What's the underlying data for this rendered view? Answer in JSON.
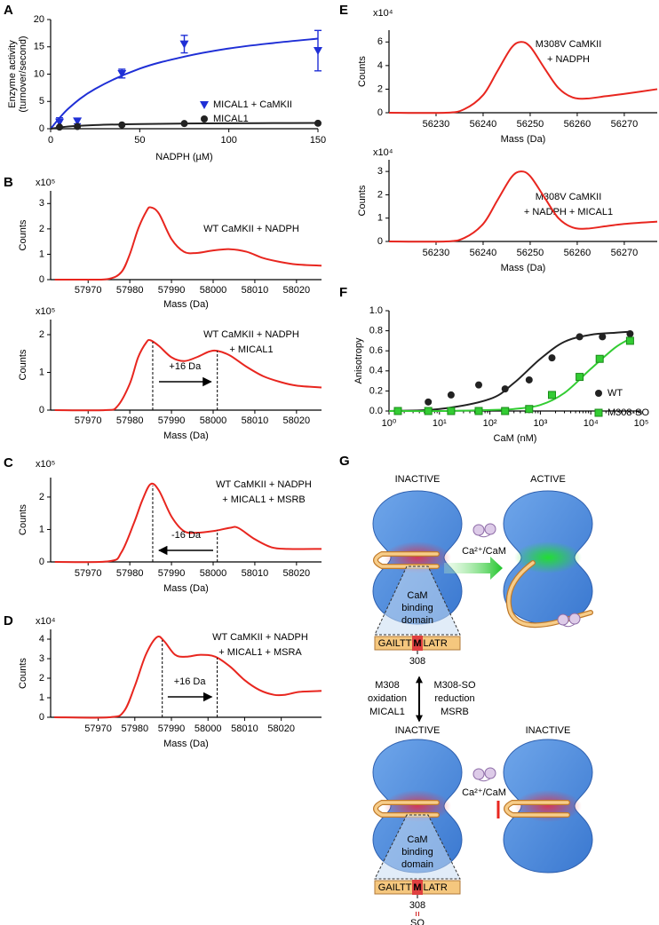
{
  "chart_data": [
    {
      "type": "scatter",
      "panel": "A",
      "x_label": "NADPH (µM)",
      "y_label": [
        "Enzyme activity",
        "(turnover/second)"
      ],
      "xlim": [
        0,
        150
      ],
      "xticks": [
        0,
        50,
        100,
        150
      ],
      "ylim": [
        0,
        20
      ],
      "yticks": [
        0,
        5,
        10,
        15,
        20
      ],
      "legend": "lower right",
      "series": [
        {
          "name": "MICAL1 + CaMKII",
          "color": "#1f2fd6",
          "marker": "triangle-down",
          "x": [
            5,
            15,
            40,
            75,
            150
          ],
          "values": [
            1.2,
            1.4,
            10.1,
            15.5,
            14.3
          ],
          "errors": [
            0.8,
            0.5,
            0.8,
            1.6,
            3.7
          ],
          "fit": {
            "x": [
              0,
              10,
              25,
              50,
              75,
              100,
              125,
              150
            ],
            "values": [
              0,
              3.7,
              7.3,
              11,
              13.2,
              14.7,
              15.7,
              16.5
            ]
          }
        },
        {
          "name": "MICAL1",
          "color": "#222222",
          "marker": "circle",
          "x": [
            5,
            15,
            40,
            75,
            150
          ],
          "values": [
            0.3,
            0.4,
            0.7,
            0.95,
            1.0
          ],
          "fit": {
            "x": [
              0,
              10,
              25,
              50,
              75,
              100,
              125,
              150
            ],
            "values": [
              0,
              0.4,
              0.67,
              0.86,
              0.95,
              1.0,
              1.03,
              1.06
            ]
          }
        }
      ]
    },
    {
      "type": "line",
      "panel": "B",
      "x_label": "Mass (Da)",
      "y_label": "Counts",
      "y_multiplier": "x10⁵",
      "annotation": [
        "WT CaMKII + NADPH"
      ],
      "xlim": [
        57961,
        58026
      ],
      "xticks": [
        57970,
        57980,
        57990,
        58000,
        58010,
        58020
      ],
      "ylim": [
        0,
        3.5
      ],
      "yticks": [
        0,
        1,
        2,
        3
      ],
      "series": [
        {
          "color": "#e8261f",
          "x": [
            57962,
            57970,
            57975,
            57978,
            57980,
            57982,
            57984,
            57985,
            57987,
            57990,
            57993,
            57996,
            58000,
            58004,
            58008,
            58012,
            58016,
            58020,
            58026
          ],
          "values": [
            0,
            0,
            0.03,
            0.3,
            1.0,
            2.0,
            2.7,
            2.85,
            2.6,
            1.6,
            1.1,
            1.05,
            1.15,
            1.2,
            1.1,
            0.85,
            0.7,
            0.6,
            0.55
          ]
        }
      ]
    },
    {
      "type": "line",
      "x_label": "Mass (Da)",
      "y_label": "Counts",
      "y_multiplier": "x10⁵",
      "annotation": [
        "WT CaMKII + NADPH",
        "+ MICAL1"
      ],
      "xlim": [
        57961,
        58026
      ],
      "xticks": [
        57970,
        57980,
        57990,
        58000,
        58010,
        58020
      ],
      "ylim": [
        0,
        2.4
      ],
      "yticks": [
        0,
        1,
        2
      ],
      "markers": [
        57985.5,
        58001
      ],
      "arrow": [
        57987,
        57999.5
      ],
      "shift_label": "+16 Da",
      "series": [
        {
          "color": "#e8261f",
          "x": [
            57962,
            57974,
            57977,
            57980,
            57982,
            57984,
            57985,
            57987,
            57990,
            57993,
            57996,
            57999,
            58001,
            58004,
            58008,
            58012,
            58016,
            58020,
            58026
          ],
          "values": [
            0,
            0,
            0.1,
            0.7,
            1.4,
            1.8,
            1.85,
            1.7,
            1.4,
            1.3,
            1.4,
            1.55,
            1.57,
            1.45,
            1.15,
            0.9,
            0.75,
            0.65,
            0.6
          ]
        }
      ]
    },
    {
      "type": "line",
      "panel": "C",
      "x_label": "Mass (Da)",
      "y_label": "Counts",
      "y_multiplier": "x10⁵",
      "annotation": [
        "WT CaMKII + NADPH",
        "+ MICAL1 + MSRB"
      ],
      "xlim": [
        57961,
        58026
      ],
      "xticks": [
        57970,
        57980,
        57990,
        58000,
        58010,
        58020
      ],
      "ylim": [
        0,
        2.6
      ],
      "yticks": [
        0,
        1,
        2
      ],
      "markers": [
        57985.5,
        58001
      ],
      "arrow": [
        58000,
        57987
      ],
      "shift_label": "-16 Da",
      "series": [
        {
          "color": "#e8261f",
          "x": [
            57962,
            57975,
            57978,
            57981,
            57983,
            57985,
            57987,
            57990,
            57993,
            57996,
            58000,
            58004,
            58006,
            58010,
            58014,
            58018,
            58026
          ],
          "values": [
            0,
            0.02,
            0.3,
            1.2,
            1.9,
            2.4,
            2.2,
            1.4,
            0.95,
            0.9,
            0.95,
            1.05,
            1.05,
            0.7,
            0.45,
            0.4,
            0.4
          ]
        }
      ]
    },
    {
      "type": "line",
      "panel": "D",
      "x_label": "Mass (Da)",
      "y_label": "Counts",
      "y_multiplier": "x10⁴",
      "annotation": [
        "WT CaMKII + NADPH",
        "+ MICAL1 + MSRA"
      ],
      "xlim": [
        57957,
        58031
      ],
      "xticks": [
        57970,
        57980,
        57990,
        58000,
        58010,
        58020
      ],
      "ylim": [
        0,
        4.5
      ],
      "yticks": [
        0,
        1,
        2,
        3,
        4
      ],
      "markers": [
        57987.5,
        58002.5
      ],
      "arrow": [
        57989,
        58001
      ],
      "shift_label": "+16 Da",
      "series": [
        {
          "color": "#e8261f",
          "x": [
            57958,
            57973,
            57977,
            57980,
            57983,
            57986,
            57988,
            57991,
            57994,
            57998,
            58002,
            58006,
            58010,
            58014,
            58018,
            58021,
            58025,
            58031
          ],
          "values": [
            0,
            0,
            0.3,
            1.6,
            3.2,
            4.1,
            3.9,
            3.2,
            3.1,
            3.2,
            3.1,
            2.6,
            1.9,
            1.4,
            1.15,
            1.15,
            1.3,
            1.35
          ]
        }
      ]
    },
    {
      "type": "line",
      "panel": "E",
      "x_label": "Mass (Da)",
      "y_label": "Counts",
      "y_multiplier": "x10⁴",
      "annotation": [
        "M308V CaMKII",
        "+ NADPH"
      ],
      "xlim": [
        56220,
        56277
      ],
      "xticks": [
        56230,
        56240,
        56250,
        56260,
        56270
      ],
      "ylim": [
        0,
        7
      ],
      "yticks": [
        0,
        2,
        4,
        6
      ],
      "series": [
        {
          "color": "#e8261f",
          "x": [
            56220,
            56232,
            56236,
            56240,
            56243,
            56246,
            56248,
            56250,
            56253,
            56256,
            56259,
            56262,
            56266,
            56270,
            56277
          ],
          "values": [
            0,
            0,
            0.3,
            1.5,
            3.5,
            5.5,
            6.0,
            5.6,
            3.8,
            2.1,
            1.3,
            1.2,
            1.4,
            1.6,
            2.0
          ]
        }
      ]
    },
    {
      "type": "line",
      "x_label": "Mass (Da)",
      "y_label": "Counts",
      "y_multiplier": "x10⁴",
      "annotation": [
        "M308V CaMKII",
        "+ NADPH + MICAL1"
      ],
      "xlim": [
        56220,
        56277
      ],
      "xticks": [
        56230,
        56240,
        56250,
        56260,
        56270
      ],
      "ylim": [
        0,
        3.5
      ],
      "yticks": [
        0,
        1,
        2,
        3
      ],
      "series": [
        {
          "color": "#e8261f",
          "x": [
            56220,
            56232,
            56236,
            56240,
            56243,
            56246,
            56248,
            56250,
            56253,
            56256,
            56259,
            56262,
            56266,
            56270,
            56277
          ],
          "values": [
            0,
            0,
            0.15,
            0.75,
            1.75,
            2.75,
            3.0,
            2.8,
            1.9,
            1.0,
            0.6,
            0.55,
            0.65,
            0.75,
            0.85
          ]
        }
      ]
    },
    {
      "type": "scatter",
      "panel": "F",
      "x_label": "CaM (nM)",
      "y_label": [
        "Anisotropy"
      ],
      "xlog": true,
      "legend": "lower right",
      "xlim": [
        1,
        100000
      ],
      "xticks": [
        {
          "value": 1,
          "label": "10⁰"
        },
        {
          "value": 10,
          "label": "10¹"
        },
        {
          "value": 100,
          "label": "10²"
        },
        {
          "value": 1000,
          "label": "10³"
        },
        {
          "value": 10000,
          "label": "10⁴"
        },
        {
          "value": 100000,
          "label": "10⁵"
        }
      ],
      "ylim": [
        0,
        1
      ],
      "yticks": [
        {
          "value": 0,
          "label": "0.0"
        },
        {
          "value": 0.2,
          "label": "0.2"
        },
        {
          "value": 0.4,
          "label": "0.4"
        },
        {
          "value": 0.6,
          "label": "0.6"
        },
        {
          "value": 0.8,
          "label": "0.8"
        },
        {
          "value": 1,
          "label": "1.0"
        }
      ],
      "series": [
        {
          "name": "WT",
          "color": "#222222",
          "marker": "circle",
          "x": [
            1.5,
            6,
            17,
            60,
            200,
            600,
            1700,
            6000,
            17000,
            60000
          ],
          "values": [
            0,
            0.09,
            0.16,
            0.26,
            0.22,
            0.31,
            0.53,
            0.74,
            0.74,
            0.77
          ],
          "fit": {
            "x": [
              1,
              10,
              100,
              300,
              1000,
              3000,
              10000,
              30000,
              60000
            ],
            "values": [
              0,
              0.02,
              0.12,
              0.28,
              0.52,
              0.69,
              0.76,
              0.78,
              0.79
            ]
          }
        },
        {
          "name": "M308-SO",
          "color": "#33cc33",
          "marker": "square",
          "x": [
            1.5,
            6,
            17,
            60,
            200,
            600,
            1700,
            6000,
            15000,
            60000
          ],
          "values": [
            0,
            0,
            0,
            0,
            0,
            0.02,
            0.16,
            0.34,
            0.52,
            0.7
          ],
          "fit": {
            "x": [
              1,
              10,
              100,
              300,
              1000,
              3000,
              10000,
              30000,
              60000
            ],
            "values": [
              0,
              0,
              0.01,
              0.02,
              0.06,
              0.18,
              0.42,
              0.63,
              0.72
            ]
          }
        }
      ]
    }
  ],
  "diagram": {
    "panel": "G",
    "states": [
      "INACTIVE",
      "ACTIVE",
      "INACTIVE",
      "INACTIVE"
    ],
    "ligand": [
      "Ca²⁺/CaM",
      "Ca²⁺/CaM"
    ],
    "domains": [
      {
        "label": [
          "CaM",
          "binding",
          "domain"
        ],
        "sequence": [
          "GAILTT",
          "M",
          "LATR"
        ],
        "residue": "308"
      },
      {
        "label": [
          "CaM",
          "binding",
          "domain"
        ],
        "sequence": [
          "GAILTT",
          "M",
          "LATR"
        ],
        "residue": "308",
        "modification": "SO"
      }
    ],
    "oxidation": [
      "M308",
      "oxidation",
      "MICAL1"
    ],
    "reduction": [
      "M308-SO",
      "reduction",
      "MSRB"
    ]
  }
}
